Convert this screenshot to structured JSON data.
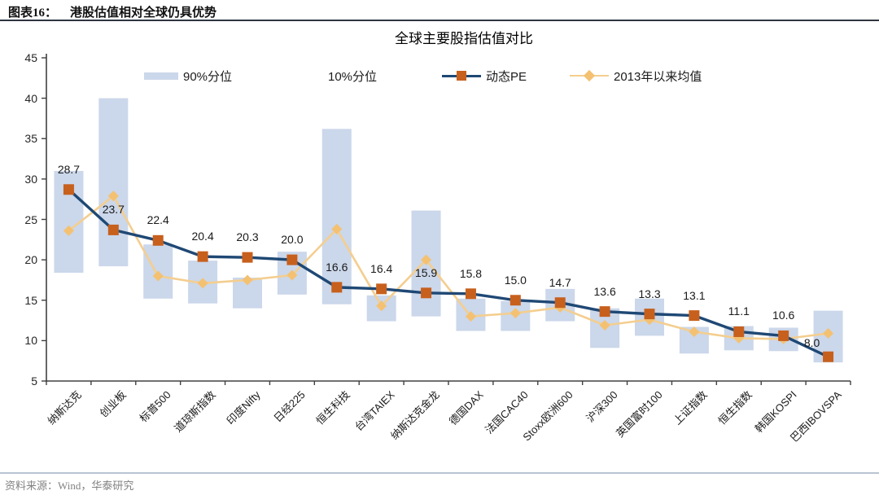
{
  "header": {
    "label": "图表16：",
    "title": "港股估值相对全球仍具优势"
  },
  "chart_data": {
    "type": "combo-range-bar-line",
    "title": "全球主要股指估值对比",
    "categories": [
      "纳斯达克",
      "创业板",
      "标普500",
      "道琼斯指数",
      "印度Nifty",
      "日经225",
      "恒生科技",
      "台湾TAIEX",
      "纳斯达克金龙",
      "德国DAX",
      "法国CAC40",
      "Stoxx欧洲600",
      "沪深300",
      "英国富时100",
      "上证指数",
      "恒生指数",
      "韩国KOSPI",
      "巴西IBOVSPA"
    ],
    "series": [
      {
        "name": "90%分位",
        "type": "range-bar-high",
        "values": [
          31.0,
          40.0,
          21.9,
          19.9,
          17.8,
          21.0,
          36.2,
          15.6,
          26.1,
          15.2,
          14.9,
          16.4,
          14.0,
          15.2,
          11.7,
          11.8,
          11.6,
          13.7
        ]
      },
      {
        "name": "10%分位",
        "type": "range-bar-low",
        "values": [
          18.4,
          19.2,
          15.2,
          14.6,
          14.0,
          15.7,
          14.5,
          12.4,
          13.0,
          11.2,
          11.2,
          12.4,
          9.1,
          10.6,
          8.4,
          8.8,
          8.7,
          7.3
        ]
      },
      {
        "name": "动态PE",
        "type": "line",
        "marker": "square",
        "data_labels": true,
        "values": [
          28.7,
          23.7,
          22.4,
          20.4,
          20.3,
          20.0,
          16.6,
          16.4,
          15.9,
          15.8,
          15.0,
          14.7,
          13.6,
          13.3,
          13.1,
          11.1,
          10.6,
          8.0
        ]
      },
      {
        "name": "2013年以来均值",
        "type": "line",
        "marker": "diamond",
        "data_labels": false,
        "values": [
          23.6,
          27.9,
          18.0,
          17.1,
          17.5,
          18.1,
          23.8,
          14.3,
          20.0,
          13.0,
          13.4,
          14.1,
          11.9,
          12.6,
          11.1,
          10.3,
          10.2,
          10.9
        ]
      }
    ],
    "ylim": [
      5,
      45
    ],
    "yticks": [
      5,
      10,
      15,
      20,
      25,
      30,
      35,
      40,
      45
    ],
    "x_label_rotation": 45,
    "grid": false,
    "legend_position": "top",
    "colors": {
      "range_bar": "#CBD7EA",
      "pe_line": "#1F4874",
      "pe_marker": "#C7601D",
      "mean_line": "#F4CE8F",
      "mean_marker": "#F4C172",
      "axis": "#404040",
      "data_label": "#1A1A1A",
      "header_rule": "#2F3540",
      "footer_rule": "#B9C4D1"
    }
  },
  "footer": {
    "source": "资料来源：Wind，华泰研究"
  }
}
